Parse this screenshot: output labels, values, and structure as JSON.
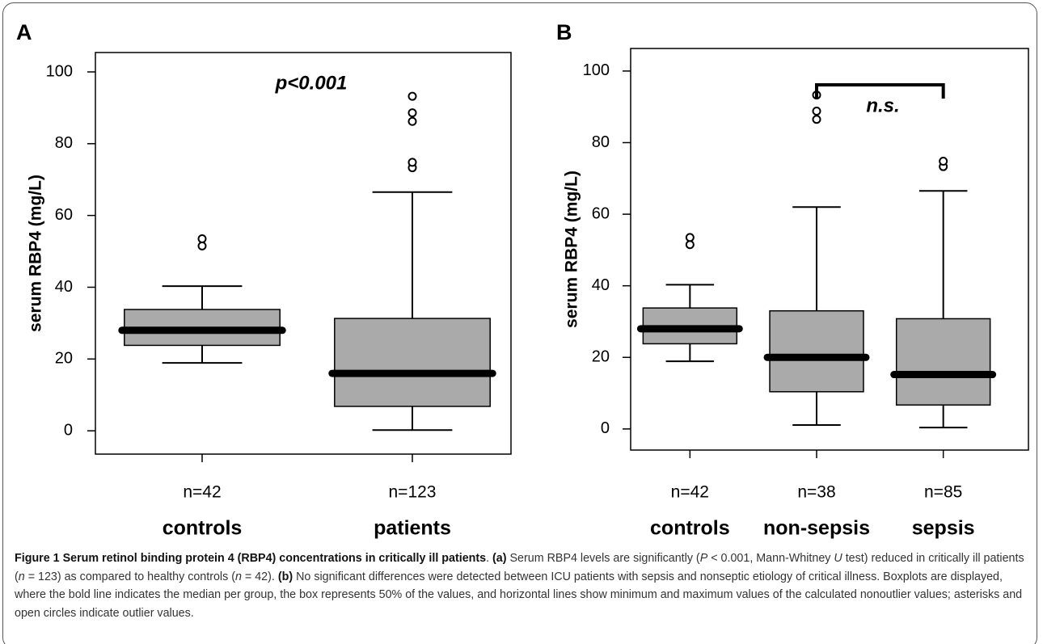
{
  "chart_data": [
    {
      "type": "box",
      "panel_label": "A",
      "y_label": "serum RBP4 (mg/L)",
      "annotation": "p<0.001",
      "categories": [
        "controls",
        "patients"
      ],
      "n_labels": [
        "n=42",
        "n=123"
      ],
      "color": "#aaaaaa",
      "boxes": [
        {
          "whisker_low": 18.9,
          "q1": 23.8,
          "median": 28,
          "q3": 33.8,
          "whisker_high": 40.3,
          "outliers": [
            51.5,
            53.5
          ]
        },
        {
          "whisker_low": 0.2,
          "q1": 6.8,
          "median": 16,
          "q3": 31.3,
          "whisker_high": 66.5,
          "outliers": [
            73.3,
            74.8,
            86.2,
            88.6,
            93.2
          ]
        }
      ],
      "ylim": [
        -6.5,
        105.4
      ],
      "yticks": [
        0,
        20,
        40,
        60,
        80,
        100
      ]
    },
    {
      "type": "box",
      "panel_label": "B",
      "y_label": "serum RBP4 (mg/L)",
      "annotation": "n.s.",
      "categories": [
        "controls",
        "non-sepsis",
        "sepsis"
      ],
      "n_labels": [
        "n=42",
        "n=38",
        "n=85"
      ],
      "color": "#aaaaaa",
      "boxes": [
        {
          "whisker_low": 18.9,
          "q1": 23.8,
          "median": 28,
          "q3": 33.8,
          "whisker_high": 40.3,
          "outliers": [
            51.5,
            53.5
          ]
        },
        {
          "whisker_low": 1.1,
          "q1": 10.4,
          "median": 20,
          "q3": 33,
          "whisker_high": 62,
          "outliers": [
            86.5,
            88.8,
            93.3
          ]
        },
        {
          "whisker_low": 0.4,
          "q1": 6.7,
          "median": 15.2,
          "q3": 30.8,
          "whisker_high": 66.5,
          "outliers": [
            73.3,
            74.8
          ]
        }
      ],
      "ylim": [
        -5.9,
        106.3
      ],
      "yticks": [
        0,
        20,
        40,
        60,
        80,
        100
      ]
    }
  ],
  "caption": {
    "runs": [
      "Figure 1 Serum retinol binding protein 4 (RBP4) concentrations in critically ill patients",
      ". ",
      "(a)",
      " Serum RBP4 levels are significantly (",
      "P",
      " < 0.001, Mann-Whitney ",
      "U",
      " test) reduced in critically ill patients (",
      "n",
      " = 123) as compared to healthy controls (",
      "n",
      " = 42). ",
      "(b)",
      " No significant differences were detected between ICU patients with sepsis and nonseptic etiology of critical illness. Boxplots are displayed, where the bold line indicates the median per group, the box represents 50% of the values, and horizontal lines show minimum and maximum values of the calculated nonoutlier values; asterisks and open circles indicate outlier values."
    ]
  }
}
